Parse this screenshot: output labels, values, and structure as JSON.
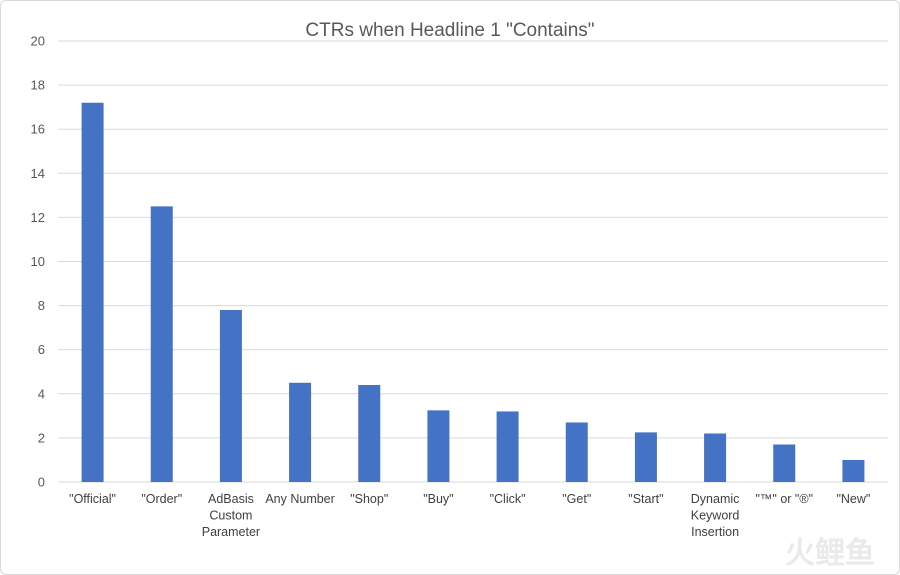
{
  "chart_data": {
    "type": "bar",
    "title": "CTRs when Headline 1 \"Contains\"",
    "xlabel": "",
    "ylabel": "",
    "ylim": [
      0,
      20
    ],
    "yticks": [
      0,
      2,
      4,
      6,
      8,
      10,
      12,
      14,
      16,
      18,
      20
    ],
    "grid": true,
    "legend": "none",
    "categories": [
      [
        "\"Official\""
      ],
      [
        "\"Order\""
      ],
      [
        "AdBasis",
        "Custom",
        "Parameter"
      ],
      [
        "Any Number"
      ],
      [
        "\"Shop\""
      ],
      [
        "\"Buy\""
      ],
      [
        "\"Click\""
      ],
      [
        "\"Get\""
      ],
      [
        "\"Start\""
      ],
      [
        "Dynamic",
        "Keyword",
        "Insertion"
      ],
      [
        "\"™\" or \"®\""
      ],
      [
        "\"New\""
      ]
    ],
    "values": [
      17.2,
      12.5,
      7.8,
      4.5,
      4.4,
      3.25,
      3.2,
      2.7,
      2.25,
      2.2,
      1.7,
      1.0
    ],
    "colors": {
      "bar": "#4472c4",
      "grid": "#d9d9d9",
      "text": "#595959"
    }
  },
  "watermark": {
    "text": "火鲤鱼"
  }
}
